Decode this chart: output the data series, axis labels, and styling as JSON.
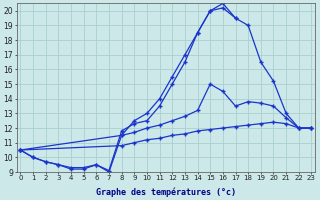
{
  "title": "Graphe des températures (°c)",
  "background_color": "#cce8e8",
  "grid_color": "#aacfcf",
  "line_color": "#1a35cc",
  "xlim": [
    -0.3,
    23.3
  ],
  "ylim": [
    9,
    20.5
  ],
  "yticks": [
    9,
    10,
    11,
    12,
    13,
    14,
    15,
    16,
    17,
    18,
    19,
    20
  ],
  "series1_x": [
    0,
    1,
    2,
    3,
    4,
    5,
    6,
    7,
    8,
    9,
    10,
    11,
    12,
    13,
    14,
    15,
    16,
    17
  ],
  "series1_y": [
    10.5,
    10.0,
    9.7,
    9.5,
    9.2,
    9.2,
    9.5,
    9.0,
    11.5,
    12.5,
    13.0,
    14.0,
    15.5,
    17.0,
    18.5,
    20.0,
    20.5,
    19.5
  ],
  "series2_x": [
    0,
    1,
    2,
    3,
    4,
    5,
    6,
    7,
    8,
    9,
    10,
    11,
    12,
    13,
    14,
    15,
    16,
    17,
    18,
    19,
    20,
    21,
    22,
    23
  ],
  "series2_y": [
    10.5,
    10.0,
    9.7,
    9.5,
    9.3,
    9.3,
    9.5,
    9.1,
    11.8,
    12.3,
    12.5,
    13.5,
    15.0,
    16.5,
    18.5,
    20.0,
    20.2,
    19.5,
    19.0,
    16.5,
    15.2,
    13.0,
    12.0,
    12.0
  ],
  "series3_x": [
    0,
    8,
    9,
    10,
    11,
    12,
    13,
    14,
    15,
    16,
    17,
    18,
    19,
    20,
    21,
    22,
    23
  ],
  "series3_y": [
    10.5,
    11.5,
    11.7,
    12.0,
    12.2,
    12.5,
    12.8,
    13.2,
    15.0,
    14.5,
    13.5,
    13.8,
    13.7,
    13.5,
    12.7,
    12.0,
    12.0
  ],
  "series4_x": [
    0,
    8,
    9,
    10,
    11,
    12,
    13,
    14,
    15,
    16,
    17,
    18,
    19,
    20,
    21,
    22,
    23
  ],
  "series4_y": [
    10.5,
    10.8,
    11.0,
    11.2,
    11.3,
    11.5,
    11.6,
    11.8,
    11.9,
    12.0,
    12.1,
    12.2,
    12.3,
    12.4,
    12.3,
    12.0,
    12.0
  ]
}
